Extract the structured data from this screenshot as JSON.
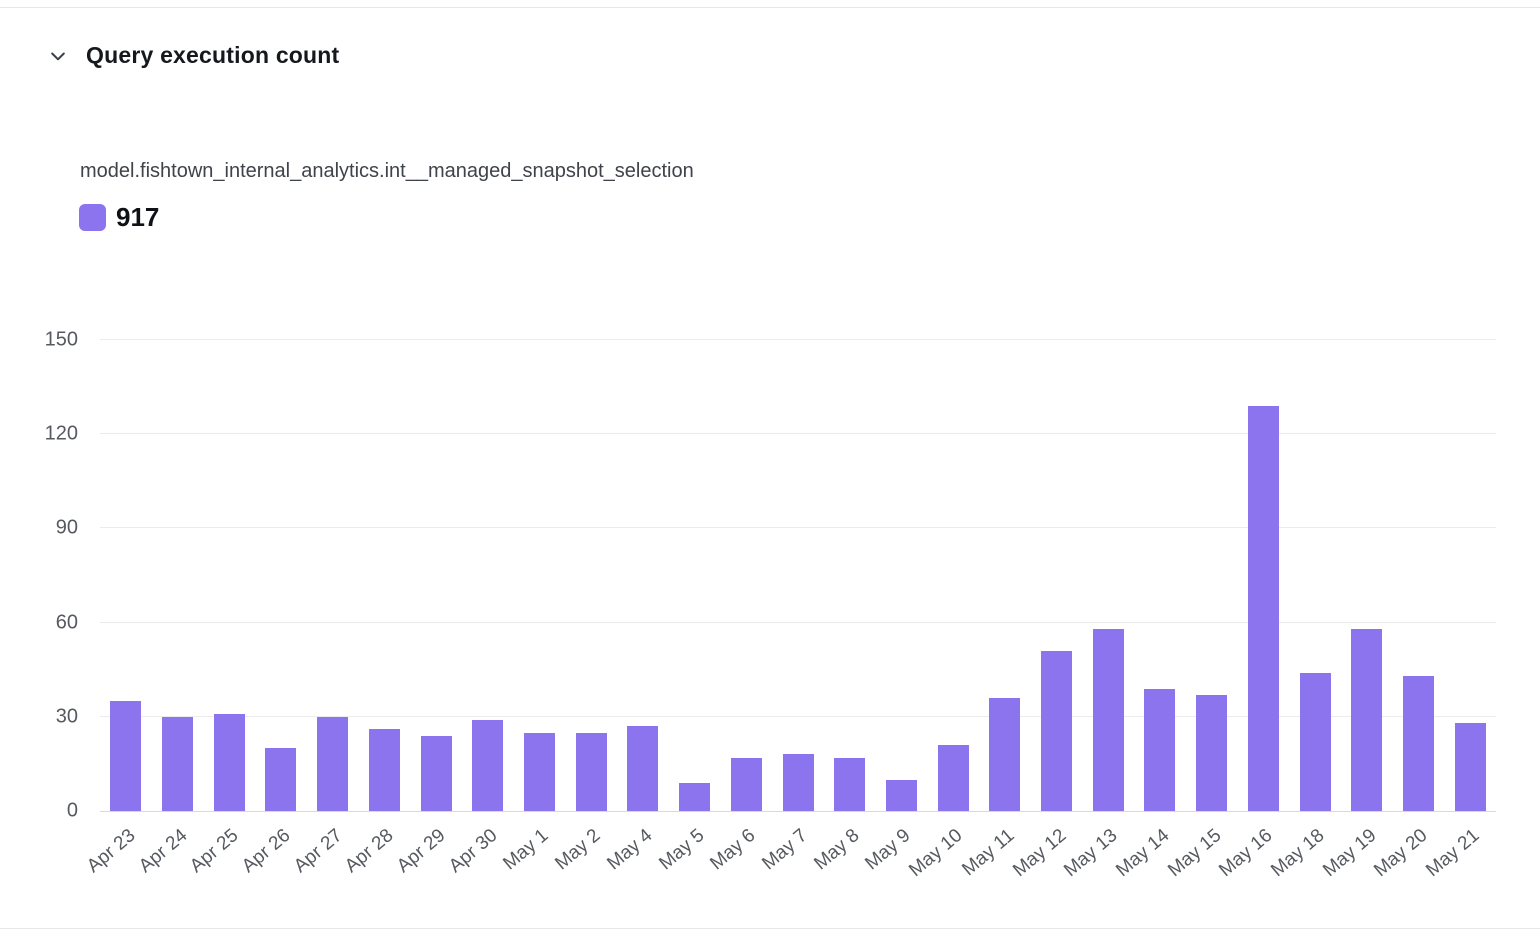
{
  "header": {
    "title": "Query execution count"
  },
  "legend": {
    "series_name": "model.fishtown_internal_analytics.int__managed_snapshot_selection",
    "total": "917"
  },
  "colors": {
    "bar": "#8b74ee",
    "grid": "#ececee",
    "axis_line": "#d9d9db",
    "axis_text": "#565a60",
    "title_text": "#15181d"
  },
  "chart_data": {
    "type": "bar",
    "title": "Query execution count",
    "series_label": "model.fishtown_internal_analytics.int__managed_snapshot_selection",
    "series_total": 917,
    "categories": [
      "Apr 23",
      "Apr 24",
      "Apr 25",
      "Apr 26",
      "Apr 27",
      "Apr 28",
      "Apr 29",
      "Apr 30",
      "May 1",
      "May 2",
      "May 4",
      "May 5",
      "May 6",
      "May 7",
      "May 8",
      "May 9",
      "May 10",
      "May 11",
      "May 12",
      "May 13",
      "May 14",
      "May 15",
      "May 16",
      "May 18",
      "May 19",
      "May 20",
      "May 21"
    ],
    "values": [
      35,
      30,
      31,
      20,
      30,
      26,
      24,
      29,
      25,
      25,
      27,
      9,
      17,
      18,
      17,
      10,
      21,
      36,
      51,
      58,
      39,
      37,
      129,
      44,
      58,
      43,
      28
    ],
    "xlabel": "",
    "ylabel": "",
    "ylim": [
      0,
      150
    ],
    "yticks": [
      0,
      30,
      60,
      90,
      120,
      150
    ],
    "grid": true,
    "legend_position": "top-left",
    "bar_color": "#8b74ee"
  }
}
